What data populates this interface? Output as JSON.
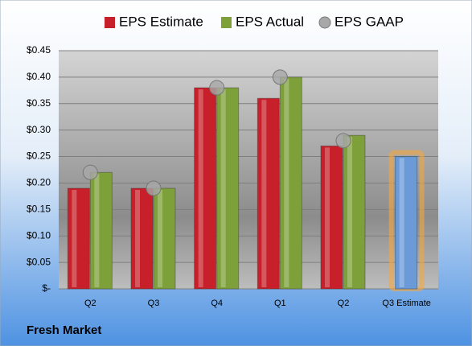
{
  "chart_data": {
    "type": "bar",
    "caption": "Fresh Market",
    "categories": [
      "Q2",
      "Q3",
      "Q4",
      "Q1",
      "Q2",
      "Q3 Estimate"
    ],
    "series": [
      {
        "name": "EPS Estimate",
        "color": "#c8202a",
        "point_colors": [
          "#c8202a",
          "#c8202a",
          "#c8202a",
          "#c8202a",
          "#c8202a",
          "#6a9bd8"
        ],
        "values": [
          0.19,
          0.19,
          0.38,
          0.36,
          0.27,
          0.25
        ]
      },
      {
        "name": "EPS Actual",
        "color": "#7ea03a",
        "values": [
          0.22,
          0.19,
          0.38,
          0.4,
          0.29,
          null
        ]
      },
      {
        "name": "EPS GAAP",
        "color": "#a8a8a8",
        "marker": "circle",
        "values": [
          0.22,
          0.19,
          0.38,
          0.4,
          0.28,
          null
        ]
      }
    ],
    "ylim": [
      0,
      0.45
    ],
    "yticks": [
      {
        "value": 0,
        "label": "$-"
      },
      {
        "value": 0.05,
        "label": "$0.05"
      },
      {
        "value": 0.1,
        "label": "$0.10"
      },
      {
        "value": 0.15,
        "label": "$0.15"
      },
      {
        "value": 0.2,
        "label": "$0.20"
      },
      {
        "value": 0.25,
        "label": "$0.25"
      },
      {
        "value": 0.3,
        "label": "$0.30"
      },
      {
        "value": 0.35,
        "label": "$0.35"
      },
      {
        "value": 0.4,
        "label": "$0.40"
      },
      {
        "value": 0.45,
        "label": "$0.45"
      }
    ],
    "grid": true,
    "legend": "top"
  }
}
